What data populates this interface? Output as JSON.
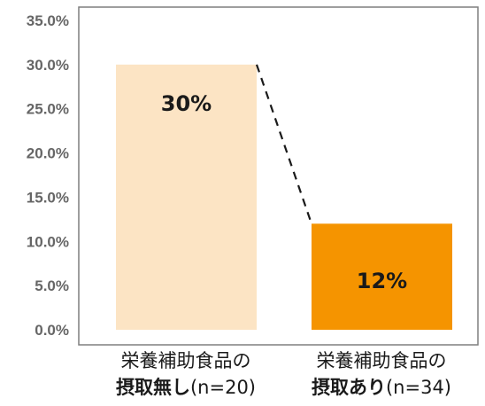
{
  "chart_data": {
    "type": "bar",
    "categories": [
      {
        "line1": "栄養補助食品の",
        "bold": "摂取無し",
        "suffix": "(n=20)"
      },
      {
        "line1": "栄養補助食品の",
        "bold": "摂取あり",
        "suffix": "(n=34)"
      }
    ],
    "values": [
      30,
      12
    ],
    "data_labels": [
      "30%",
      "12%"
    ],
    "colors": [
      "#FCE4C4",
      "#F59400"
    ],
    "ylim": [
      0,
      35
    ],
    "yticks": [
      "0.0%",
      "5.0%",
      "10.0%",
      "15.0%",
      "20.0%",
      "25.0%",
      "30.0%",
      "35.0%"
    ],
    "connector_line": "dashed",
    "grid": false
  }
}
